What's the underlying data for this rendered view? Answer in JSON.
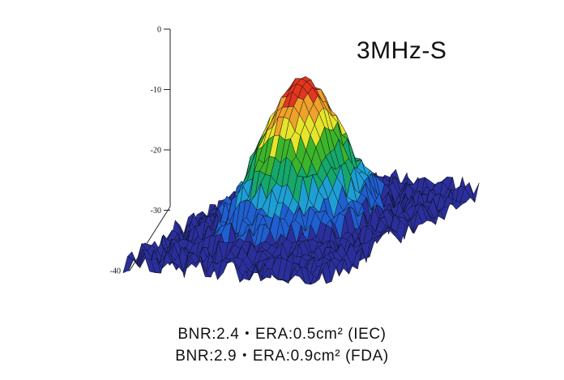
{
  "chart_data": {
    "type": "surface3d",
    "title": "3MHz-S",
    "zlabel": "",
    "z_ticks": [
      "0",
      "-10",
      "-20",
      "-30",
      "-40"
    ],
    "zlim": [
      -40,
      0
    ],
    "peak_value": -9,
    "grid": true,
    "colormap": [
      "#2a2f9c",
      "#1f5fd0",
      "#1e9fd4",
      "#15a86a",
      "#3cb52b",
      "#e6e42c",
      "#f0a12a",
      "#e2361e"
    ]
  },
  "captions": [
    "BNR:2.4・ERA:0.5cm² (IEC)",
    "BNR:2.9・ERA:0.9cm² (FDA)"
  ]
}
